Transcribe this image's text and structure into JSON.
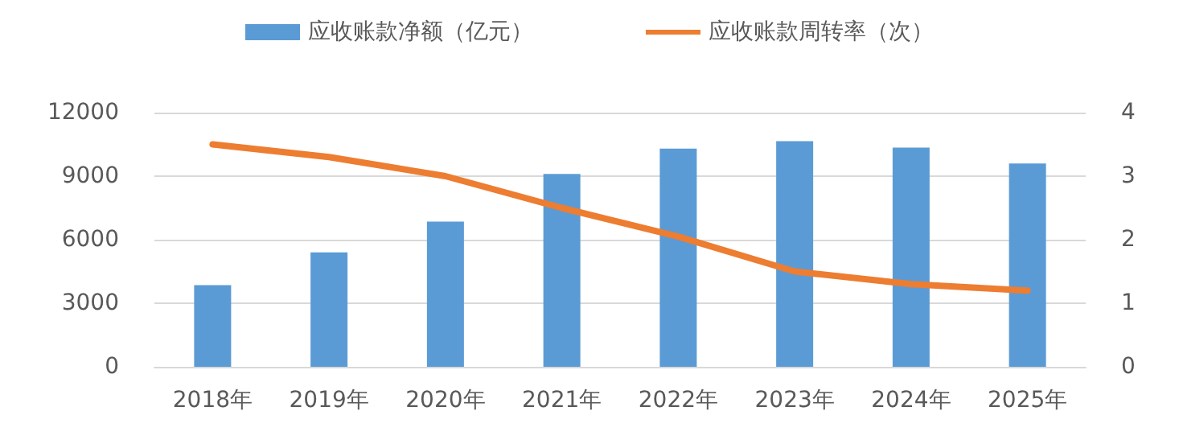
{
  "chart_data": {
    "type": "bar",
    "categories": [
      "2018年",
      "2019年",
      "2020年",
      "2021年",
      "2022年",
      "2023年",
      "2024年",
      "2025年"
    ],
    "series": [
      {
        "name": "应收账款净额（亿元）",
        "color": "#5b9bd5",
        "values": [
          3850,
          5400,
          6850,
          9100,
          10300,
          10650,
          10350,
          9600
        ]
      },
      {
        "name": "应收账款周转率（次）",
        "type": "line",
        "axis": "y2",
        "color": "#ed7d31",
        "values": [
          3.5,
          3.3,
          3.0,
          2.5,
          2.05,
          1.5,
          1.3,
          1.2
        ]
      }
    ],
    "ylim": [
      0,
      12000
    ],
    "yticks": [
      0,
      3000,
      6000,
      9000,
      12000
    ],
    "y2lim": [
      0,
      4
    ],
    "y2ticks": [
      0,
      1,
      2,
      3,
      4
    ],
    "grid": "y",
    "legend": "top",
    "marker": "none",
    "line_style": "solid"
  }
}
